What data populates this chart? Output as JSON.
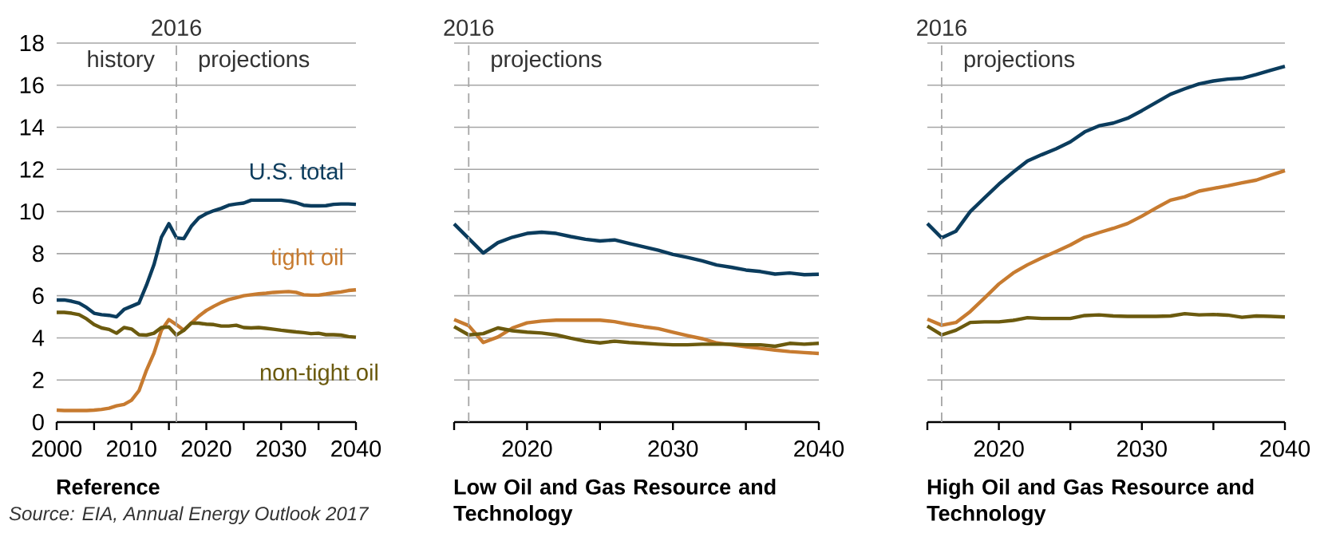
{
  "chart_data": [
    {
      "type": "line",
      "xlabel": "Reference",
      "x": [
        2000,
        2001,
        2002,
        2003,
        2004,
        2005,
        2006,
        2007,
        2008,
        2009,
        2010,
        2011,
        2012,
        2013,
        2014,
        2015,
        2016,
        2017,
        2018,
        2019,
        2020,
        2021,
        2022,
        2023,
        2024,
        2025,
        2026,
        2027,
        2028,
        2029,
        2030,
        2031,
        2032,
        2033,
        2034,
        2035,
        2036,
        2037,
        2038,
        2039,
        2040
      ],
      "series": [
        {
          "name": "U.S. total",
          "color": "#0b3c5d",
          "values": [
            5.8,
            5.8,
            5.74,
            5.65,
            5.44,
            5.17,
            5.1,
            5.07,
            5.0,
            5.35,
            5.5,
            5.65,
            6.5,
            7.47,
            8.78,
            9.42,
            8.75,
            8.71,
            9.3,
            9.7,
            9.9,
            10.04,
            10.15,
            10.3,
            10.36,
            10.4,
            10.54,
            10.54,
            10.54,
            10.54,
            10.54,
            10.49,
            10.42,
            10.3,
            10.27,
            10.27,
            10.28,
            10.34,
            10.36,
            10.36,
            10.34
          ]
        },
        {
          "name": "tight oil",
          "color": "#c77b30",
          "values": [
            0.57,
            0.55,
            0.55,
            0.55,
            0.55,
            0.57,
            0.6,
            0.66,
            0.77,
            0.84,
            1.04,
            1.49,
            2.46,
            3.27,
            4.36,
            4.87,
            4.63,
            4.36,
            4.7,
            5.03,
            5.3,
            5.5,
            5.68,
            5.82,
            5.91,
            6.0,
            6.05,
            6.09,
            6.12,
            6.16,
            6.18,
            6.2,
            6.16,
            6.05,
            6.03,
            6.03,
            6.08,
            6.14,
            6.18,
            6.25,
            6.28
          ]
        },
        {
          "name": "non-tight oil",
          "color": "#6b5a0e",
          "values": [
            5.21,
            5.21,
            5.17,
            5.1,
            4.9,
            4.63,
            4.47,
            4.4,
            4.22,
            4.49,
            4.42,
            4.15,
            4.13,
            4.22,
            4.49,
            4.52,
            4.13,
            4.36,
            4.7,
            4.7,
            4.65,
            4.63,
            4.56,
            4.56,
            4.6,
            4.49,
            4.47,
            4.49,
            4.45,
            4.41,
            4.36,
            4.32,
            4.28,
            4.25,
            4.2,
            4.22,
            4.15,
            4.15,
            4.13,
            4.06,
            4.03
          ]
        }
      ],
      "xlim": [
        2000,
        2040
      ],
      "xticks": [
        2000,
        {
          "value": 2005,
          "label": null
        },
        2010,
        {
          "value": 2015,
          "label": null
        },
        2020,
        {
          "value": 2025,
          "label": null
        },
        2030,
        {
          "value": 2035,
          "label": null
        },
        2040
      ],
      "ylim": [
        0,
        18
      ],
      "yticks": [
        0,
        2,
        4,
        6,
        8,
        10,
        12,
        14,
        16,
        18
      ],
      "grid": "y",
      "marker": "none",
      "ref_lines": [
        {
          "axis": "x",
          "value": 2016,
          "label": "2016",
          "color": "#a6a6a6",
          "line_style": "dashed"
        }
      ],
      "annotations": [
        "history",
        "projections",
        "Source: EIA, Annual Energy Outlook 2017"
      ]
    },
    {
      "type": "line",
      "xlabel": "Low Oil and Gas Resource and Technology",
      "x": [
        2015,
        2016,
        2017,
        2018,
        2019,
        2020,
        2021,
        2022,
        2023,
        2024,
        2025,
        2026,
        2027,
        2028,
        2029,
        2030,
        2031,
        2032,
        2033,
        2034,
        2035,
        2036,
        2037,
        2038,
        2039,
        2040
      ],
      "series": [
        {
          "color": "#0b3c5d",
          "values": [
            9.41,
            8.72,
            8.03,
            8.52,
            8.78,
            8.96,
            9.02,
            8.96,
            8.81,
            8.68,
            8.6,
            8.65,
            8.48,
            8.32,
            8.16,
            7.96,
            7.82,
            7.66,
            7.46,
            7.35,
            7.22,
            7.15,
            7.03,
            7.08,
            7.0,
            7.02
          ]
        },
        {
          "color": "#c77b30",
          "values": [
            4.87,
            4.58,
            3.78,
            4.04,
            4.47,
            4.71,
            4.8,
            4.84,
            4.84,
            4.84,
            4.84,
            4.77,
            4.64,
            4.53,
            4.44,
            4.27,
            4.11,
            3.96,
            3.76,
            3.67,
            3.58,
            3.5,
            3.42,
            3.35,
            3.3,
            3.26
          ]
        },
        {
          "color": "#6b5a0e",
          "values": [
            4.53,
            4.14,
            4.2,
            4.47,
            4.34,
            4.27,
            4.23,
            4.14,
            3.98,
            3.84,
            3.76,
            3.84,
            3.78,
            3.74,
            3.7,
            3.67,
            3.67,
            3.7,
            3.7,
            3.7,
            3.67,
            3.67,
            3.6,
            3.74,
            3.7,
            3.74
          ]
        }
      ],
      "xlim": [
        2015,
        2040
      ],
      "xticks": [
        {
          "value": 2015,
          "label": null
        },
        2020,
        {
          "value": 2025,
          "label": null
        },
        2030,
        {
          "value": 2035,
          "label": null
        },
        2040
      ],
      "ylim": [
        0,
        18
      ],
      "yticks": [
        0,
        2,
        4,
        6,
        8,
        10,
        12,
        14,
        16,
        18
      ],
      "tick_labels": "x",
      "grid": "y",
      "marker": "none",
      "ref_lines": [
        {
          "axis": "x",
          "value": 2016,
          "label": "2016",
          "color": "#a6a6a6",
          "line_style": "dashed"
        }
      ],
      "annotations": [
        "projections"
      ]
    },
    {
      "type": "line",
      "xlabel": "High Oil and Gas Resource and Technology",
      "x": [
        2015,
        2016,
        2017,
        2018,
        2019,
        2020,
        2021,
        2022,
        2023,
        2024,
        2025,
        2026,
        2027,
        2028,
        2029,
        2030,
        2031,
        2032,
        2033,
        2034,
        2035,
        2036,
        2037,
        2038,
        2039,
        2040
      ],
      "series": [
        {
          "color": "#0b3c5d",
          "values": [
            9.43,
            8.75,
            9.07,
            10.0,
            10.65,
            11.3,
            11.87,
            12.4,
            12.7,
            12.98,
            13.31,
            13.78,
            14.07,
            14.2,
            14.43,
            14.79,
            15.18,
            15.57,
            15.83,
            16.06,
            16.2,
            16.29,
            16.33,
            16.51,
            16.71,
            16.9
          ]
        },
        {
          "color": "#c77b30",
          "values": [
            4.89,
            4.6,
            4.73,
            5.25,
            5.9,
            6.56,
            7.08,
            7.47,
            7.8,
            8.1,
            8.41,
            8.78,
            9.0,
            9.2,
            9.43,
            9.78,
            10.17,
            10.54,
            10.7,
            10.97,
            11.1,
            11.22,
            11.36,
            11.49,
            11.72,
            11.94
          ]
        },
        {
          "color": "#6b5a0e",
          "values": [
            4.56,
            4.14,
            4.36,
            4.73,
            4.76,
            4.76,
            4.83,
            4.96,
            4.92,
            4.92,
            4.92,
            5.06,
            5.09,
            5.04,
            5.02,
            5.02,
            5.02,
            5.04,
            5.15,
            5.09,
            5.11,
            5.08,
            4.98,
            5.04,
            5.02,
            4.99
          ]
        }
      ],
      "xlim": [
        2015,
        2040
      ],
      "xticks": [
        {
          "value": 2015,
          "label": null
        },
        2020,
        {
          "value": 2025,
          "label": null
        },
        2030,
        {
          "value": 2035,
          "label": null
        },
        2040
      ],
      "ylim": [
        0,
        18
      ],
      "yticks": [
        0,
        2,
        4,
        6,
        8,
        10,
        12,
        14,
        16,
        18
      ],
      "tick_labels": "x",
      "grid": "y",
      "marker": "none",
      "ref_lines": [
        {
          "axis": "x",
          "value": 2016,
          "label": "2016",
          "color": "#a6a6a6",
          "line_style": "dashed"
        }
      ],
      "annotations": [
        "projections"
      ]
    }
  ]
}
